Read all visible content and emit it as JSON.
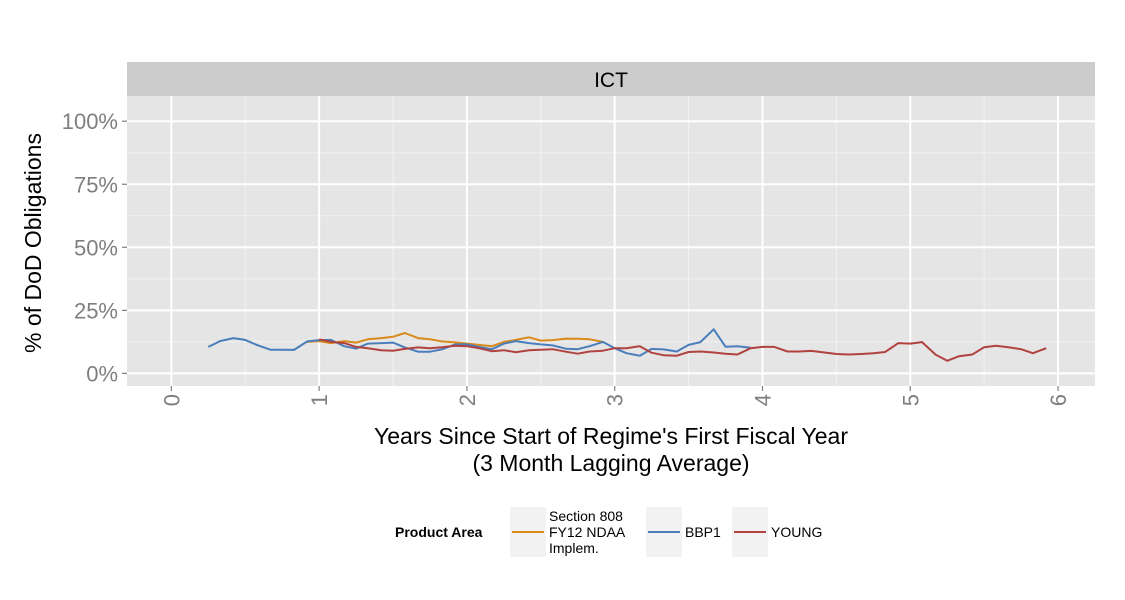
{
  "chart_data": {
    "type": "line",
    "facet_label": "ICT",
    "xlabel_line1": "Years Since Start of Regime's First Fiscal Year",
    "xlabel_line2": "(3 Month Lagging Average)",
    "ylabel": "% of DoD Obligations",
    "xlim": [
      -0.3,
      6.25
    ],
    "ylim": [
      -0.05,
      1.1
    ],
    "x_ticks": [
      0,
      1,
      2,
      3,
      4,
      5,
      6
    ],
    "x_tick_labels": [
      "0",
      "1",
      "2",
      "3",
      "4",
      "5",
      "6"
    ],
    "y_ticks": [
      0,
      0.25,
      0.5,
      0.75,
      1.0
    ],
    "y_tick_labels": [
      "0%",
      "25%",
      "50%",
      "75%",
      "100%"
    ],
    "grid": true,
    "legend": {
      "title": "Product Area",
      "position": "bottom",
      "entries": [
        {
          "lines": [
            "Section 808",
            "FY12 NDAA",
            "Implem."
          ],
          "color": "#D98A1A"
        },
        {
          "lines": [
            "BBP1"
          ],
          "color": "#4A7EBB"
        },
        {
          "lines": [
            "YOUNG"
          ],
          "color": "#B0423F"
        }
      ]
    },
    "series": [
      {
        "name": "Section 808 FY12 NDAA Implem.",
        "color": "#D98A1A",
        "x": [
          0.92,
          1.0,
          1.08,
          1.17,
          1.25,
          1.33,
          1.42,
          1.5,
          1.58,
          1.67,
          1.75,
          1.83,
          1.92,
          2.0,
          2.08,
          2.17,
          2.25,
          2.33,
          2.42,
          2.5,
          2.58,
          2.67,
          2.75,
          2.83,
          2.92
        ],
        "y": [
          0.125,
          0.128,
          0.12,
          0.128,
          0.122,
          0.135,
          0.14,
          0.145,
          0.16,
          0.14,
          0.135,
          0.127,
          0.123,
          0.118,
          0.113,
          0.108,
          0.125,
          0.133,
          0.143,
          0.13,
          0.132,
          0.138,
          0.137,
          0.135,
          0.125
        ]
      },
      {
        "name": "BBP1",
        "color": "#4A7EBB",
        "x": [
          0.25,
          0.33,
          0.42,
          0.5,
          0.58,
          0.67,
          0.75,
          0.83,
          0.92,
          1.0,
          1.08,
          1.17,
          1.25,
          1.33,
          1.42,
          1.5,
          1.58,
          1.67,
          1.75,
          1.83,
          1.92,
          2.0,
          2.08,
          2.17,
          2.25,
          2.33,
          2.42,
          2.5,
          2.58,
          2.67,
          2.75,
          2.83,
          2.92,
          3.0,
          3.08,
          3.17,
          3.25,
          3.33,
          3.42,
          3.5,
          3.58,
          3.67,
          3.75,
          3.83,
          3.92
        ],
        "y": [
          0.105,
          0.128,
          0.14,
          0.133,
          0.112,
          0.094,
          0.094,
          0.093,
          0.127,
          0.132,
          0.133,
          0.108,
          0.098,
          0.118,
          0.12,
          0.122,
          0.103,
          0.086,
          0.086,
          0.095,
          0.115,
          0.115,
          0.105,
          0.096,
          0.118,
          0.128,
          0.12,
          0.115,
          0.111,
          0.098,
          0.096,
          0.108,
          0.125,
          0.1,
          0.08,
          0.07,
          0.097,
          0.095,
          0.087,
          0.113,
          0.124,
          0.175,
          0.106,
          0.108,
          0.102
        ]
      },
      {
        "name": "YOUNG",
        "color": "#B0423F",
        "x": [
          1.0,
          1.08,
          1.17,
          1.25,
          1.33,
          1.42,
          1.5,
          1.58,
          1.67,
          1.75,
          1.83,
          1.92,
          2.0,
          2.08,
          2.17,
          2.25,
          2.33,
          2.42,
          2.5,
          2.58,
          2.67,
          2.75,
          2.83,
          2.92,
          3.0,
          3.08,
          3.17,
          3.25,
          3.33,
          3.42,
          3.5,
          3.58,
          3.67,
          3.75,
          3.83,
          3.92,
          4.0,
          4.08,
          4.17,
          4.25,
          4.33,
          4.42,
          4.5,
          4.58,
          4.67,
          4.75,
          4.83,
          4.92,
          5.0,
          5.08,
          5.17,
          5.25,
          5.33,
          5.42,
          5.5,
          5.58,
          5.67,
          5.75,
          5.83,
          5.92
        ],
        "y": [
          0.135,
          0.125,
          0.12,
          0.105,
          0.1,
          0.092,
          0.09,
          0.097,
          0.103,
          0.1,
          0.104,
          0.11,
          0.108,
          0.1,
          0.088,
          0.092,
          0.084,
          0.092,
          0.094,
          0.096,
          0.086,
          0.078,
          0.087,
          0.09,
          0.1,
          0.1,
          0.108,
          0.082,
          0.072,
          0.07,
          0.085,
          0.087,
          0.083,
          0.078,
          0.075,
          0.1,
          0.105,
          0.105,
          0.087,
          0.087,
          0.089,
          0.083,
          0.077,
          0.075,
          0.077,
          0.08,
          0.085,
          0.12,
          0.118,
          0.124,
          0.075,
          0.05,
          0.068,
          0.075,
          0.104,
          0.11,
          0.103,
          0.096,
          0.08,
          0.1
        ]
      }
    ]
  }
}
